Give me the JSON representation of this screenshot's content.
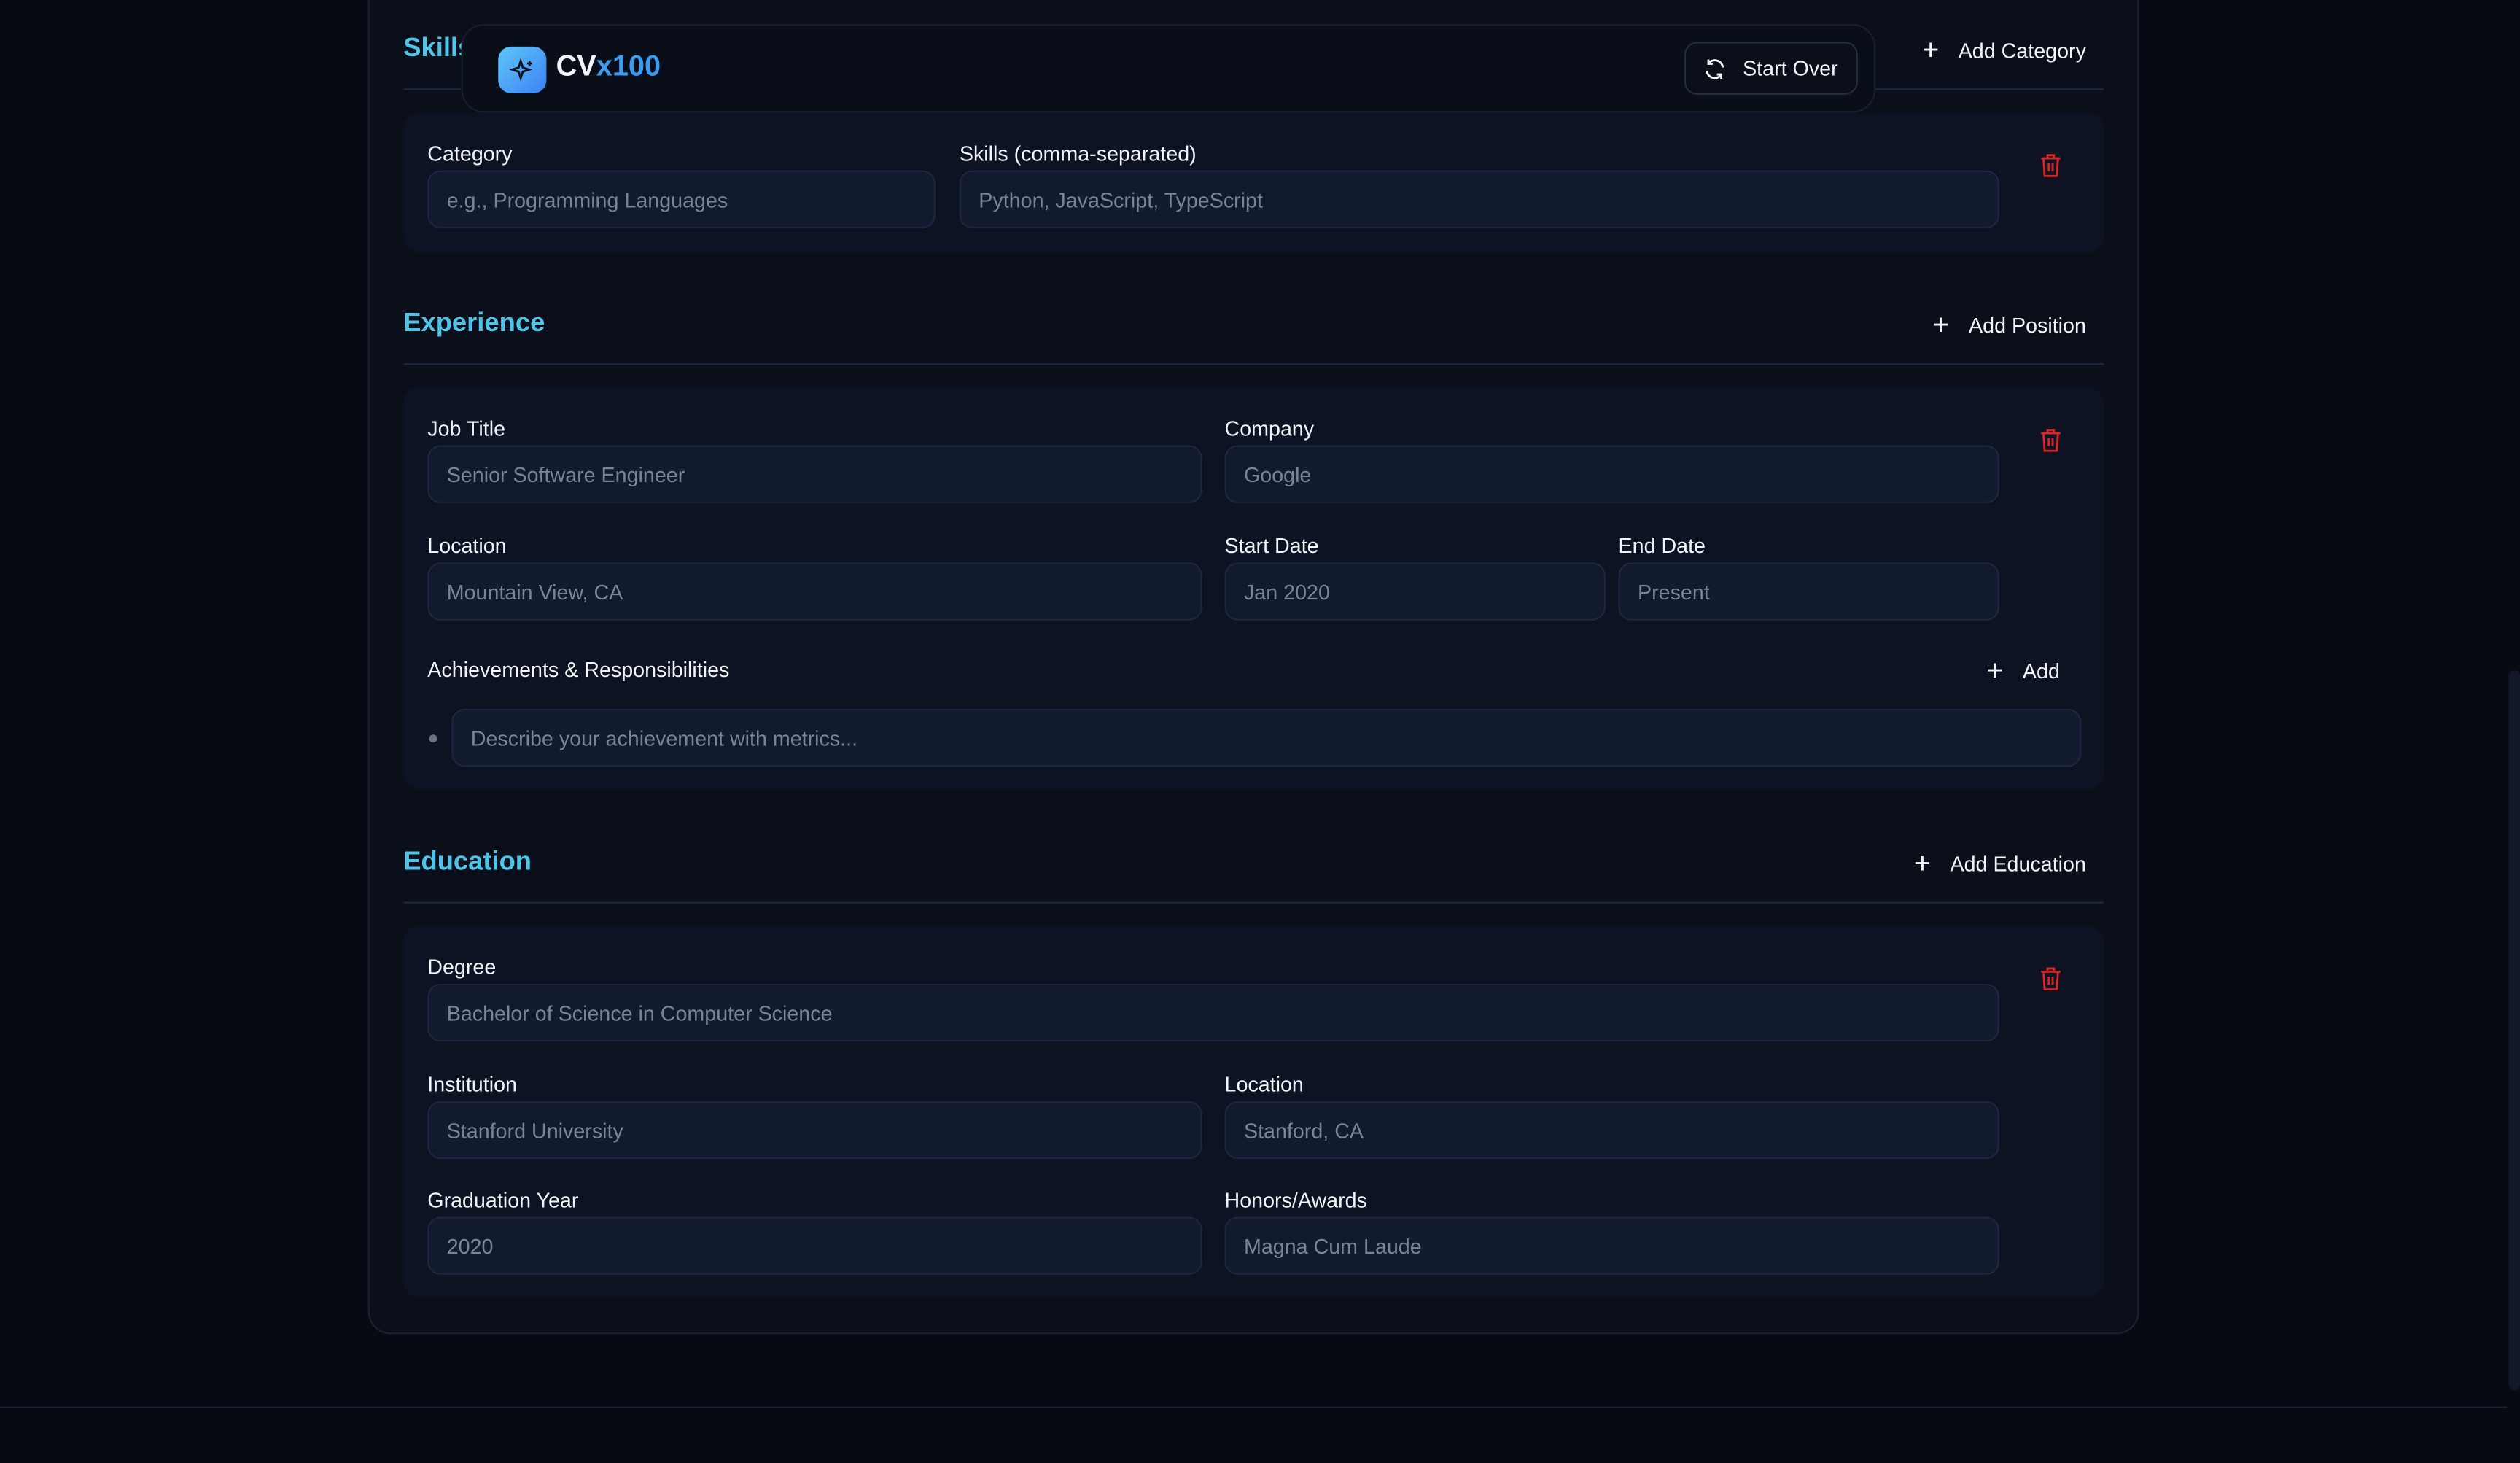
{
  "header": {
    "brand_prefix": "CV",
    "brand_suffix": "x100",
    "start_over": "Start Over"
  },
  "skills": {
    "title": "Skills",
    "add_label": "Add Category",
    "category_label": "Category",
    "category_placeholder": "e.g., Programming Languages",
    "skills_label": "Skills (comma-separated)",
    "skills_placeholder": "Python, JavaScript, TypeScript"
  },
  "experience": {
    "title": "Experience",
    "add_label": "Add Position",
    "job_title_label": "Job Title",
    "job_title_placeholder": "Senior Software Engineer",
    "company_label": "Company",
    "company_placeholder": "Google",
    "location_label": "Location",
    "location_placeholder": "Mountain View, CA",
    "start_label": "Start Date",
    "start_placeholder": "Jan 2020",
    "end_label": "End Date",
    "end_placeholder": "Present",
    "achievements_label": "Achievements & Responsibilities",
    "achievements_add": "Add",
    "achievement_placeholder": "Describe your achievement with metrics..."
  },
  "education": {
    "title": "Education",
    "add_label": "Add Education",
    "degree_label": "Degree",
    "degree_placeholder": "Bachelor of Science in Computer Science",
    "institution_label": "Institution",
    "institution_placeholder": "Stanford University",
    "location_label": "Location",
    "location_placeholder": "Stanford, CA",
    "year_label": "Graduation Year",
    "year_placeholder": "2020",
    "honors_label": "Honors/Awards",
    "honors_placeholder": "Magna Cum Laude"
  },
  "colors": {
    "accent": "#4fc3e8",
    "danger": "#dc2626",
    "background": "#070a12"
  }
}
